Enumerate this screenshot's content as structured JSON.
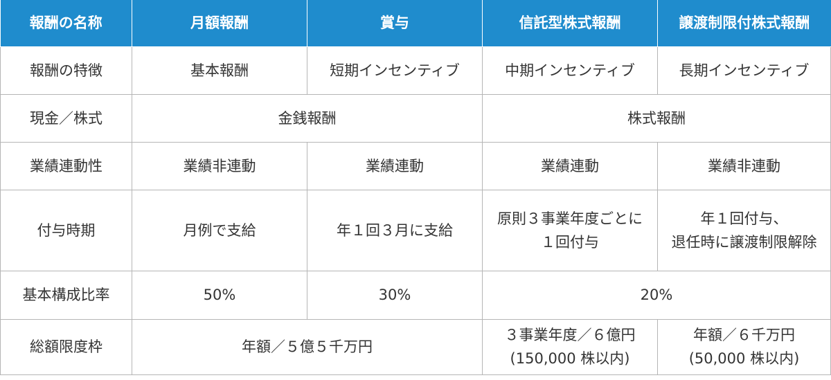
{
  "header": {
    "col0": "報酬の名称",
    "col1": "月額報酬",
    "col2": "賞与",
    "col3": "信託型株式報酬",
    "col4": "譲渡制限付株式報酬"
  },
  "rows": {
    "feature": {
      "label": "報酬の特徴",
      "monthly": "基本報酬",
      "bonus": "短期インセンティブ",
      "trust": "中期インセンティブ",
      "restricted": "長期インセンティブ"
    },
    "type": {
      "label": "現金／株式",
      "cash": "金銭報酬",
      "stock": "株式報酬"
    },
    "performance": {
      "label": "業績連動性",
      "monthly": "業績非連動",
      "bonus": "業績連動",
      "trust": "業績連動",
      "restricted": "業績非連動"
    },
    "timing": {
      "label": "付与時期",
      "monthly": "月例で支給",
      "bonus": "年１回３月に支給",
      "trust_line1": "原則３事業年度ごとに",
      "trust_line2": "１回付与",
      "restricted_line1": "年１回付与、",
      "restricted_line2": "退任時に譲渡制限解除"
    },
    "ratio": {
      "label": "基本構成比率",
      "monthly": "50%",
      "bonus": "30%",
      "stock": "20%"
    },
    "limit": {
      "label": "総額限度枠",
      "cash": "年額／５億５千万円",
      "trust_line1": "３事業年度／６億円",
      "trust_line2": "(150,000 株以内)",
      "restricted_line1": "年額／６千万円",
      "restricted_line2": "(50,000 株以内)"
    }
  },
  "colors": {
    "header_bg": "#1f8ccd",
    "header_text": "#ffffff",
    "border": "#b5b5b5",
    "text": "#333333"
  }
}
